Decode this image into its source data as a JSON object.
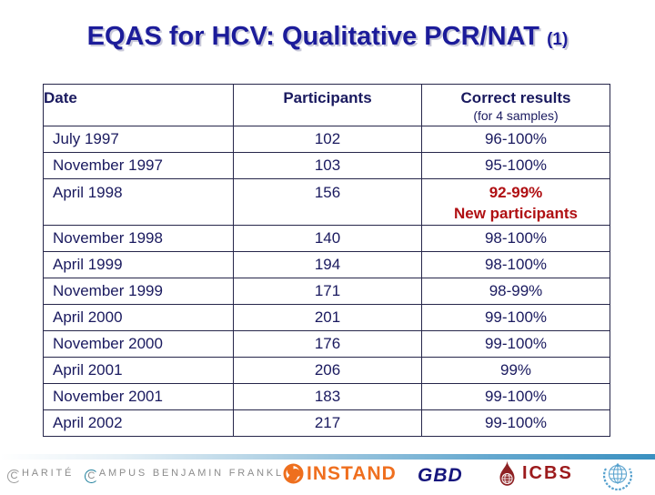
{
  "title": {
    "main": "EQAS for HCV: Qualitative PCR/NAT",
    "suffix": "(1)"
  },
  "table": {
    "headers": {
      "date": "Date",
      "participants": "Participants",
      "correct": "Correct results",
      "correct_sub": "(for 4 samples)"
    },
    "rows": [
      {
        "date": "July 1997",
        "participants": "102",
        "correct": "96-100%"
      },
      {
        "date": "November 1997",
        "participants": "103",
        "correct": "95-100%"
      },
      {
        "date": "April 1998",
        "participants": "156",
        "correct": "92-99%",
        "note": "New participants",
        "highlight": true
      },
      {
        "date": "November 1998",
        "participants": "140",
        "correct": "98-100%"
      },
      {
        "date": "April 1999",
        "participants": "194",
        "correct": "98-100%"
      },
      {
        "date": "November 1999",
        "participants": "171",
        "correct": "98-99%"
      },
      {
        "date": "April 2000",
        "participants": "201",
        "correct": "99-100%"
      },
      {
        "date": "November 2000",
        "participants": "176",
        "correct": "99-100%"
      },
      {
        "date": "April 2001",
        "participants": "206",
        "correct": "99%"
      },
      {
        "date": "November 2001",
        "participants": "183",
        "correct": "99-100%"
      },
      {
        "date": "April 2002",
        "participants": "217",
        "correct": "99-100%"
      }
    ]
  },
  "footer": {
    "charite": {
      "c1": "C",
      "part1": "HARITÉ",
      "c2": "C",
      "part2": "AMPUS BENJAMIN FRANKLIN"
    },
    "instand_label": "INSTAND",
    "gbd_label": "GBD",
    "icbs_label": "ICBS"
  },
  "colors": {
    "title_navy": "#1c1c9a",
    "table_navy": "#1a1a5f",
    "highlight_red": "#b01013",
    "instand_orange": "#ef6f1f",
    "gbd_navy": "#16167d",
    "icbs_red": "#9c1a1c",
    "who_blue": "#55a0cd",
    "bar_blue": "#3a90c0"
  }
}
